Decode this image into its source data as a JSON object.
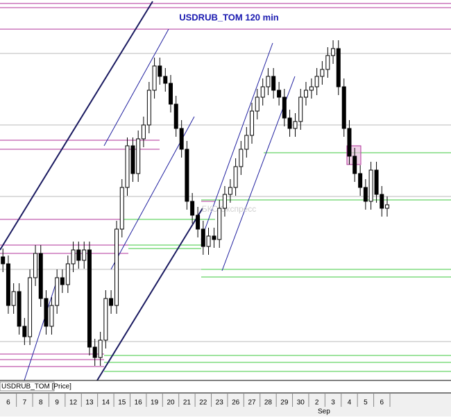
{
  "chart_data": {
    "type": "candlestick",
    "title": "USDRUB_TOM 120 min",
    "legend_label": "USDRUB_TOM [Price]",
    "watermark": "БКС Экспресс",
    "month_label": "Sep",
    "xlim": [
      -0.51,
      27.26
    ],
    "xticks": [
      {
        "value": 0,
        "label": "6"
      },
      {
        "value": 1,
        "label": "7"
      },
      {
        "value": 2,
        "label": "8"
      },
      {
        "value": 3,
        "label": "9"
      },
      {
        "value": 4,
        "label": "12"
      },
      {
        "value": 5,
        "label": "13"
      },
      {
        "value": 6,
        "label": "14"
      },
      {
        "value": 7,
        "label": "15"
      },
      {
        "value": 8,
        "label": "16"
      },
      {
        "value": 9,
        "label": "19"
      },
      {
        "value": 10,
        "label": "20"
      },
      {
        "value": 11,
        "label": "21"
      },
      {
        "value": 12,
        "label": "22"
      },
      {
        "value": 13,
        "label": "23"
      },
      {
        "value": 14,
        "label": "26"
      },
      {
        "value": 15,
        "label": "27"
      },
      {
        "value": 16,
        "label": "28"
      },
      {
        "value": 17,
        "label": "29"
      },
      {
        "value": 18,
        "label": "30"
      },
      {
        "value": 19,
        "label": "2"
      },
      {
        "value": 20,
        "label": "3"
      },
      {
        "value": 21,
        "label": "4"
      },
      {
        "value": 22,
        "label": "5"
      },
      {
        "value": 23,
        "label": "6"
      }
    ],
    "ylim": [
      0,
      548
    ],
    "up_color": "#ffffff",
    "down_color": "#000000",
    "x": [
      -0.33,
      0,
      0.33,
      0.67,
      1,
      1.33,
      1.67,
      2,
      2.33,
      2.67,
      3,
      3.33,
      3.67,
      4,
      4.33,
      4.67,
      5,
      5.33,
      5.67,
      6,
      6.33,
      6.67,
      7,
      7.33,
      7.67,
      8,
      8.33,
      8.67,
      9,
      9.33,
      9.67,
      10,
      10.33,
      10.67,
      11,
      11.33,
      11.67,
      12,
      12.33,
      12.67,
      13,
      13.33,
      13.67,
      14,
      14.33,
      14.67,
      15,
      15.33,
      15.67,
      16,
      16.33,
      16.67,
      17,
      17.33,
      17.67,
      18,
      18.33,
      18.67,
      19,
      19.33,
      19.67,
      20,
      20.33,
      20.67,
      21,
      21.33,
      21.67,
      22,
      22.33,
      22.67,
      23,
      23.33
    ],
    "open": [
      178,
      168,
      108,
      128,
      78,
      63,
      148,
      183,
      118,
      78,
      108,
      148,
      138,
      168,
      188,
      173,
      188,
      48,
      33,
      58,
      118,
      108,
      218,
      278,
      338,
      298,
      348,
      368,
      418,
      453,
      438,
      428,
      398,
      363,
      333,
      258,
      238,
      218,
      193,
      208,
      203,
      248,
      268,
      278,
      308,
      333,
      353,
      388,
      408,
      423,
      438,
      418,
      408,
      378,
      363,
      373,
      408,
      418,
      423,
      438,
      448,
      468,
      478,
      423,
      363,
      323,
      298,
      278,
      258,
      303,
      268,
      248
    ],
    "high": [
      190,
      180,
      140,
      140,
      90,
      160,
      195,
      195,
      130,
      120,
      160,
      160,
      180,
      200,
      200,
      200,
      200,
      60,
      70,
      130,
      130,
      230,
      290,
      350,
      350,
      360,
      380,
      430,
      465,
      465,
      450,
      440,
      410,
      375,
      345,
      270,
      250,
      230,
      220,
      220,
      260,
      280,
      290,
      320,
      345,
      365,
      400,
      420,
      435,
      450,
      450,
      430,
      420,
      390,
      385,
      420,
      430,
      435,
      450,
      460,
      480,
      490,
      490,
      435,
      375,
      335,
      310,
      290,
      315,
      315,
      280,
      265
    ],
    "low": [
      156,
      96,
      96,
      66,
      51,
      51,
      136,
      106,
      66,
      66,
      96,
      126,
      126,
      156,
      161,
      161,
      36,
      21,
      21,
      46,
      96,
      96,
      206,
      266,
      286,
      286,
      336,
      356,
      406,
      426,
      416,
      386,
      351,
      321,
      246,
      226,
      206,
      181,
      181,
      191,
      191,
      236,
      256,
      266,
      296,
      321,
      341,
      376,
      396,
      411,
      406,
      396,
      366,
      351,
      351,
      361,
      396,
      406,
      411,
      426,
      436,
      456,
      411,
      351,
      311,
      286,
      266,
      246,
      246,
      256,
      236,
      236
    ],
    "close": [
      168,
      108,
      128,
      78,
      63,
      148,
      183,
      118,
      78,
      108,
      148,
      138,
      168,
      188,
      173,
      188,
      48,
      33,
      58,
      118,
      108,
      218,
      278,
      338,
      298,
      348,
      368,
      418,
      453,
      438,
      428,
      398,
      363,
      333,
      258,
      238,
      218,
      193,
      208,
      203,
      248,
      268,
      278,
      308,
      333,
      353,
      388,
      408,
      423,
      438,
      418,
      408,
      378,
      363,
      373,
      408,
      418,
      423,
      438,
      448,
      468,
      478,
      423,
      363,
      323,
      298,
      278,
      258,
      303,
      268,
      248,
      253
    ]
  }
}
